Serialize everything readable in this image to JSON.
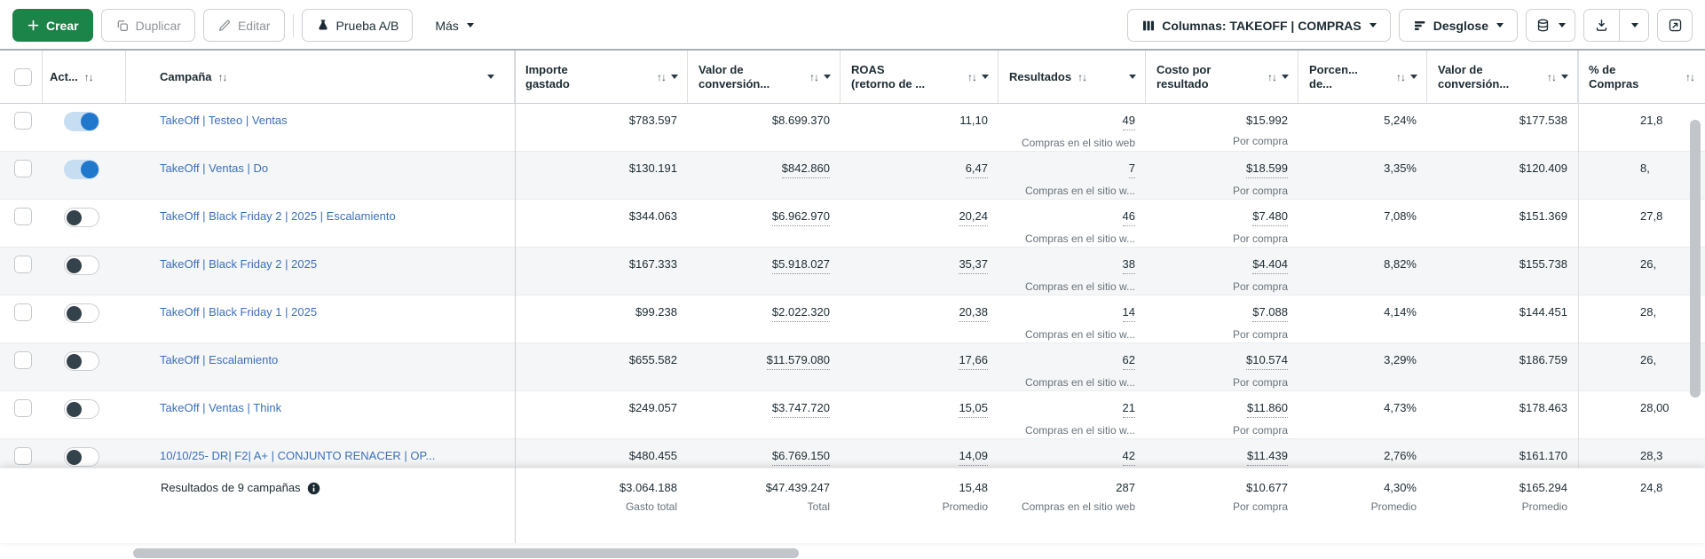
{
  "toolbar": {
    "create_label": "Crear",
    "duplicate_label": "Duplicar",
    "edit_label": "Editar",
    "ab_test_label": "Prueba A/B",
    "more_label": "Más",
    "columns_label": "Columnas: TAKEOFF | COMPRAS",
    "breakdown_label": "Desglose"
  },
  "icons": {
    "sort_glyph": "↑↓"
  },
  "table": {
    "headers": [
      {
        "id": "check",
        "type": "checkbox"
      },
      {
        "id": "act",
        "lines": [
          "Act..."
        ],
        "sort": true,
        "caret": false,
        "tight": true
      },
      {
        "id": "campaign",
        "lines": [
          "Campaña"
        ],
        "sort": true,
        "caret": true,
        "tight": true
      },
      {
        "id": "spend",
        "lines": [
          "Importe",
          "gastado"
        ],
        "sort": true,
        "caret": true
      },
      {
        "id": "conv_value",
        "lines": [
          "Valor de",
          "conversión..."
        ],
        "sort": true,
        "caret": true
      },
      {
        "id": "roas",
        "lines": [
          "ROAS",
          "(retorno de ..."
        ],
        "sort": true,
        "caret": true
      },
      {
        "id": "results",
        "lines": [
          "Resultados"
        ],
        "sort": true,
        "caret": true,
        "tight": true
      },
      {
        "id": "cost_per_result",
        "lines": [
          "Costo por",
          "resultado"
        ],
        "sort": true,
        "caret": true
      },
      {
        "id": "percentage",
        "lines": [
          "Porcen...",
          "de..."
        ],
        "sort": true,
        "caret": true
      },
      {
        "id": "conv_value_2",
        "lines": [
          "Valor de",
          "conversión..."
        ],
        "sort": true,
        "caret": true
      },
      {
        "id": "pct_compras",
        "lines": [
          "% de",
          "Compras"
        ],
        "sort": true,
        "caret": false
      }
    ],
    "rows": [
      {
        "name": "TakeOff | Testeo | Ventas",
        "toggle_on": true,
        "spend": "$783.597",
        "conv_value": "$8.699.370",
        "roas": "11,10",
        "results": "49",
        "results_label": "Compras en el sitio web",
        "cost": "$15.992",
        "cost_label": "Por compra",
        "pct": "5,24%",
        "conv_value_2": "$177.538",
        "pct_compras": "21,8",
        "u": {
          "conv": false,
          "roas": false,
          "results": true,
          "cost": false
        }
      },
      {
        "name": "TakeOff | Ventas | Do",
        "toggle_on": true,
        "spend": "$130.191",
        "conv_value": "$842.860",
        "roas": "6,47",
        "results": "7",
        "results_label": "Compras en el sitio w...",
        "cost": "$18.599",
        "cost_label": "Por compra",
        "pct": "3,35%",
        "conv_value_2": "$120.409",
        "pct_compras": "8,",
        "u": {
          "conv": true,
          "roas": true,
          "results": true,
          "cost": true
        }
      },
      {
        "name": "TakeOff | Black Friday 2 | 2025 | Escalamiento",
        "toggle_on": false,
        "spend": "$344.063",
        "conv_value": "$6.962.970",
        "roas": "20,24",
        "results": "46",
        "results_label": "Compras en el sitio w...",
        "cost": "$7.480",
        "cost_label": "Por compra",
        "pct": "7,08%",
        "conv_value_2": "$151.369",
        "pct_compras": "27,8",
        "u": {
          "conv": true,
          "roas": true,
          "results": true,
          "cost": true
        }
      },
      {
        "name": "TakeOff | Black Friday 2 | 2025",
        "toggle_on": false,
        "spend": "$167.333",
        "conv_value": "$5.918.027",
        "roas": "35,37",
        "results": "38",
        "results_label": "Compras en el sitio w...",
        "cost": "$4.404",
        "cost_label": "Por compra",
        "pct": "8,82%",
        "conv_value_2": "$155.738",
        "pct_compras": "26,",
        "u": {
          "conv": true,
          "roas": true,
          "results": true,
          "cost": true
        }
      },
      {
        "name": "TakeOff | Black Friday 1 | 2025",
        "toggle_on": false,
        "spend": "$99.238",
        "conv_value": "$2.022.320",
        "roas": "20,38",
        "results": "14",
        "results_label": "Compras en el sitio w...",
        "cost": "$7.088",
        "cost_label": "Por compra",
        "pct": "4,14%",
        "conv_value_2": "$144.451",
        "pct_compras": "28,",
        "u": {
          "conv": true,
          "roas": true,
          "results": true,
          "cost": true
        }
      },
      {
        "name": "TakeOff | Escalamiento",
        "toggle_on": false,
        "spend": "$655.582",
        "conv_value": "$11.579.080",
        "roas": "17,66",
        "results": "62",
        "results_label": "Compras en el sitio w...",
        "cost": "$10.574",
        "cost_label": "Por compra",
        "pct": "3,29%",
        "conv_value_2": "$186.759",
        "pct_compras": "26,",
        "u": {
          "conv": true,
          "roas": true,
          "results": true,
          "cost": true
        }
      },
      {
        "name": "TakeOff | Ventas | Think",
        "toggle_on": false,
        "spend": "$249.057",
        "conv_value": "$3.747.720",
        "roas": "15,05",
        "results": "21",
        "results_label": "Compras en el sitio w...",
        "cost": "$11.860",
        "cost_label": "Por compra",
        "pct": "4,73%",
        "conv_value_2": "$178.463",
        "pct_compras": "28,00",
        "u": {
          "conv": true,
          "roas": true,
          "results": true,
          "cost": true
        }
      },
      {
        "name": "10/10/25- DR| F2| A+ | CONJUNTO RENACER | OP...",
        "toggle_on": false,
        "spend": "$480.455",
        "conv_value": "$6.769.150",
        "roas": "14,09",
        "results": "42",
        "results_label": "Compras en el sitio w...",
        "cost": "$11.439",
        "cost_label": "Por compra",
        "pct": "2,76%",
        "conv_value_2": "$161.170",
        "pct_compras": "28,3",
        "u": {
          "conv": true,
          "roas": true,
          "results": true,
          "cost": true
        }
      }
    ],
    "summary": {
      "label": "Resultados de 9 campañas",
      "spend": "$3.064.188",
      "spend_label": "Gasto total",
      "conv_value": "$47.439.247",
      "conv_value_label": "Total",
      "roas": "15,48",
      "roas_label": "Promedio",
      "results": "287",
      "results_label": "Compras en el sitio web",
      "cost": "$10.677",
      "cost_label": "Por compra",
      "pct": "4,30%",
      "pct_label": "Promedio",
      "conv_value_2": "$165.294",
      "conv_value_2_label": "Promedio",
      "pct_compras": "24,8"
    }
  },
  "colors": {
    "accent_green": "#1c8349",
    "link_blue": "#3b70bd",
    "toggle_on_blue": "#2078cc",
    "text_dark": "#1c2b33",
    "text_secondary": "#68727a"
  }
}
